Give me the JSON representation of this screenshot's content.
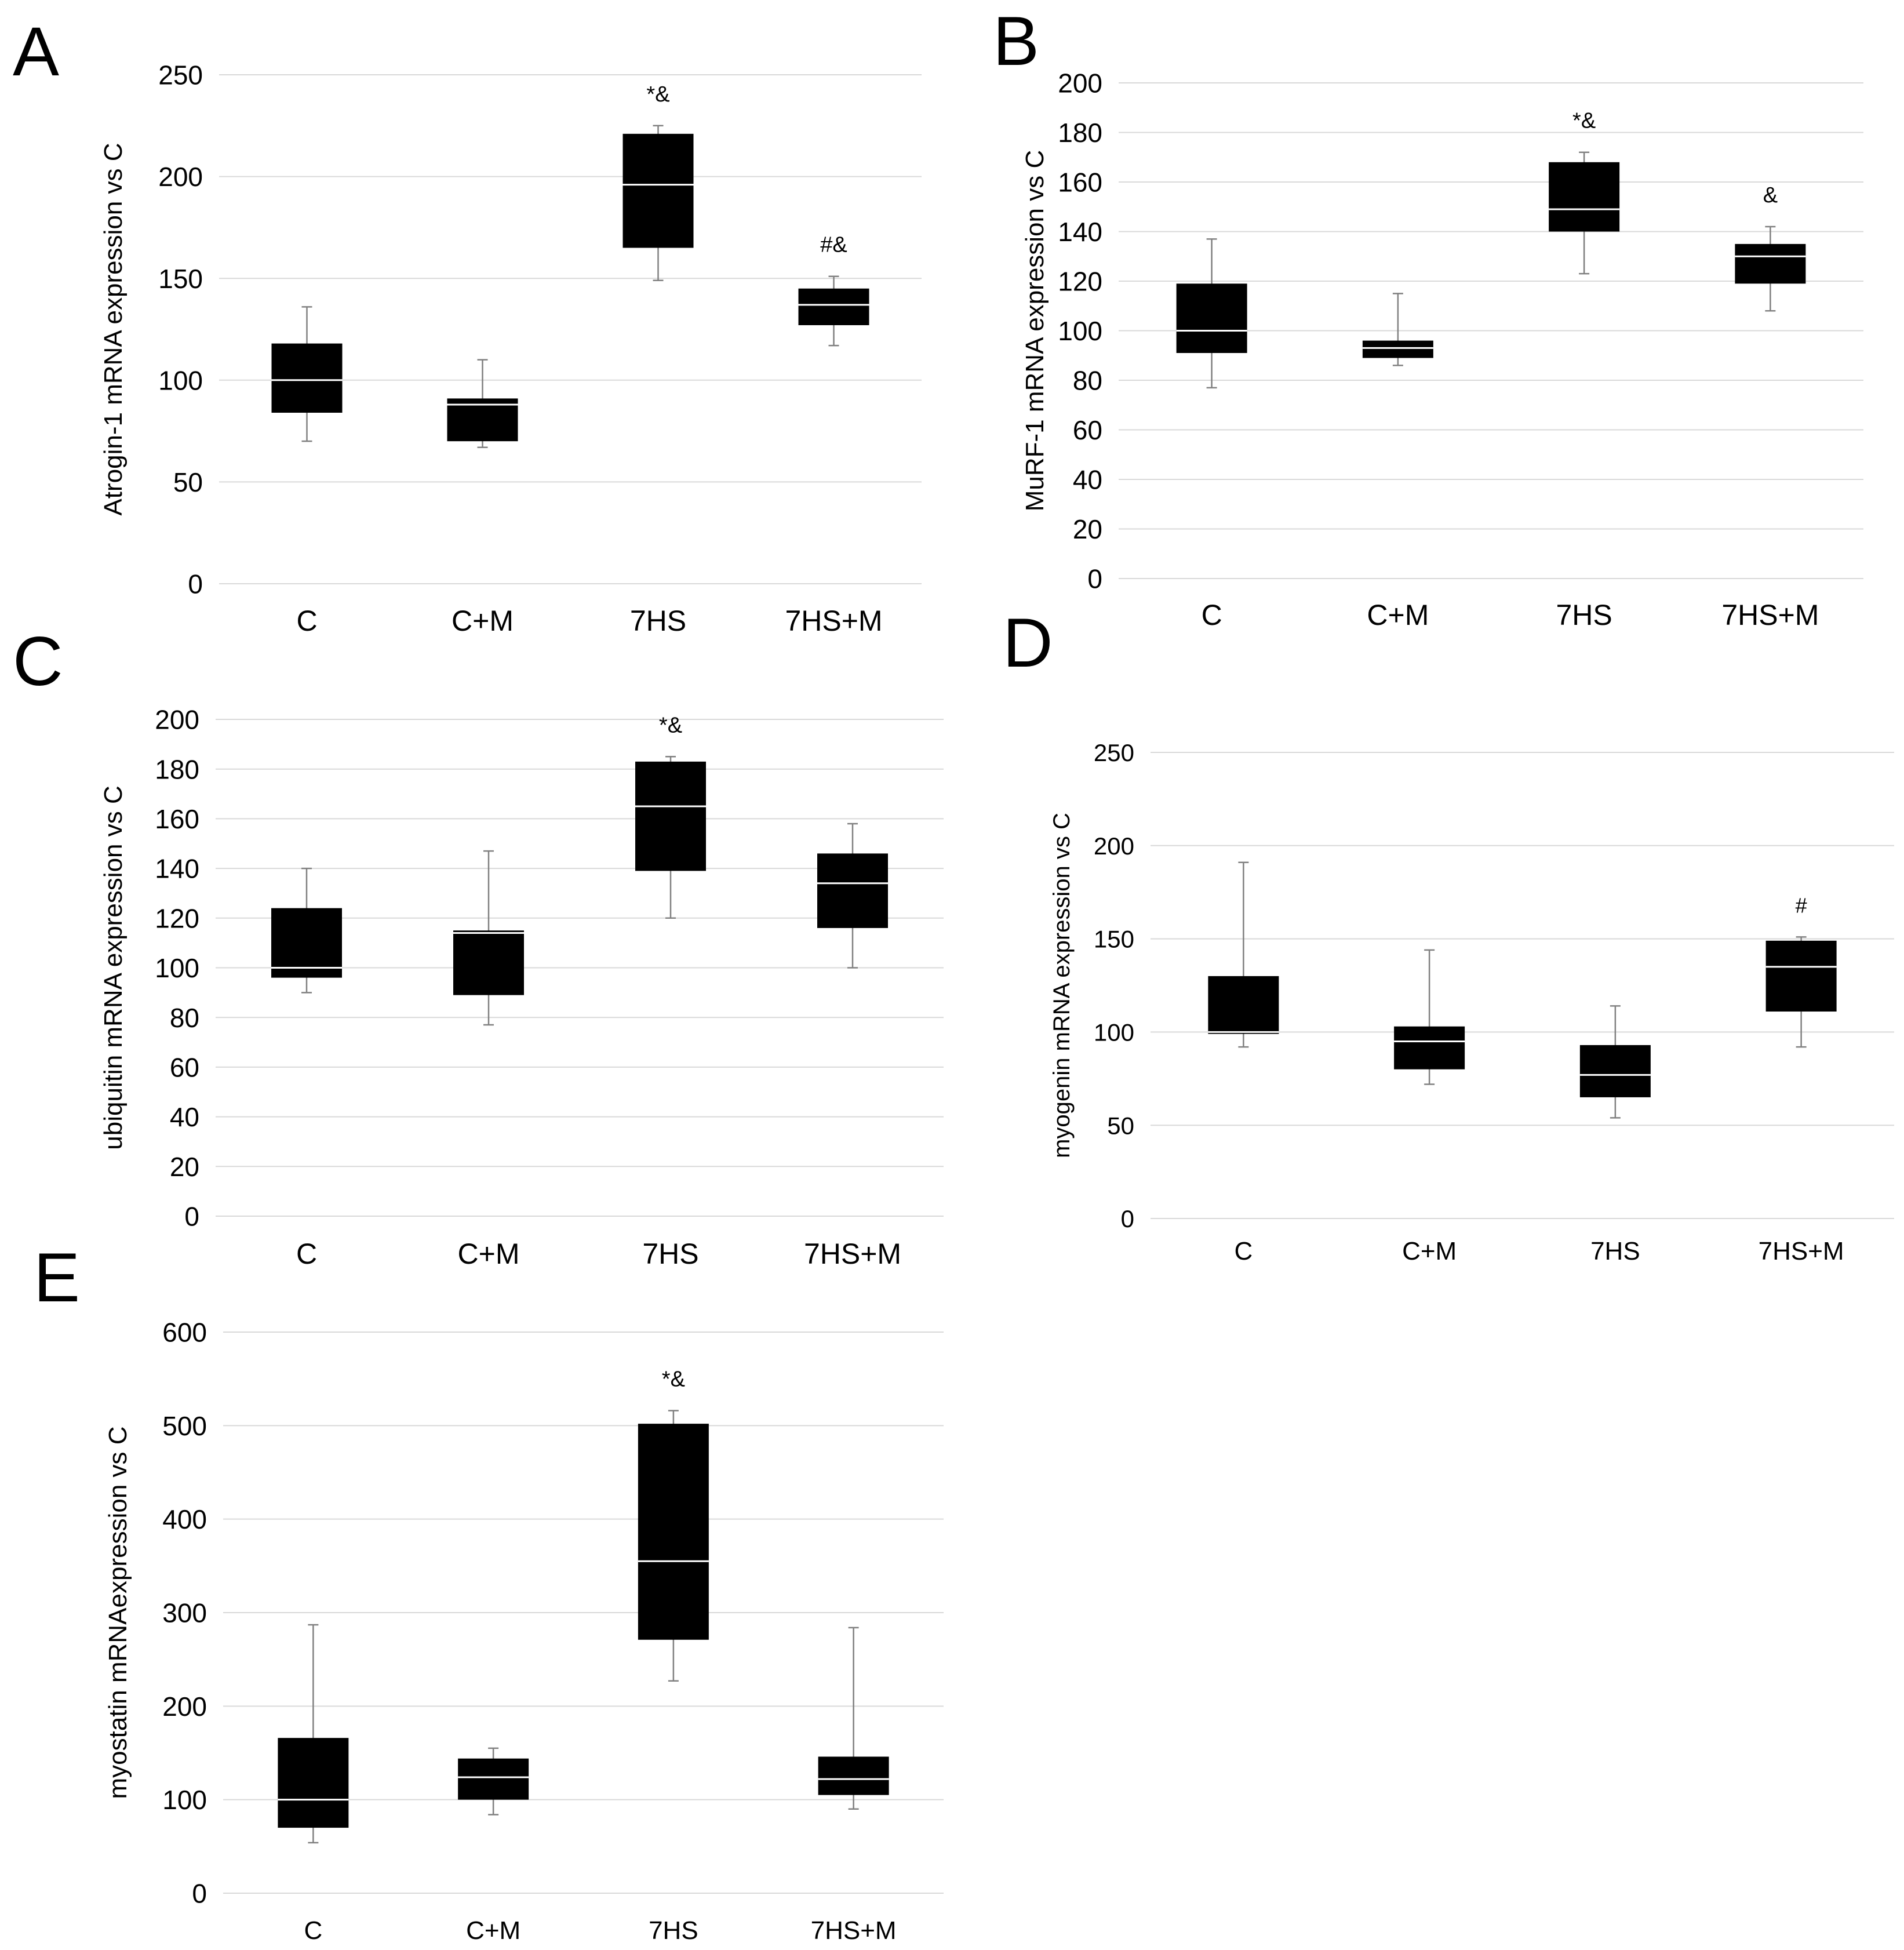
{
  "chart_data": [
    {
      "id": "A",
      "type": "box",
      "panel_label": "A",
      "ylabel": "Atrogin-1 mRNA expression vs C",
      "ylim": [
        0,
        250
      ],
      "yticks": [
        0,
        50,
        100,
        150,
        200,
        250
      ],
      "categories": [
        "C",
        "C+M",
        "7HS",
        "7HS+M"
      ],
      "boxes": [
        {
          "min": 70,
          "q1": 84,
          "median": 100,
          "q3": 118,
          "max": 136,
          "annotation": ""
        },
        {
          "min": 67,
          "q1": 70,
          "median": 88,
          "q3": 91,
          "max": 110,
          "annotation": ""
        },
        {
          "min": 149,
          "q1": 165,
          "median": 196,
          "q3": 221,
          "max": 225,
          "annotation": "*&"
        },
        {
          "min": 117,
          "q1": 127,
          "median": 137,
          "q3": 145,
          "max": 151,
          "annotation": "#&"
        }
      ]
    },
    {
      "id": "B",
      "type": "box",
      "panel_label": "B",
      "ylabel": "MuRF-1 mRNA expression vs C",
      "ylim": [
        0,
        200
      ],
      "yticks": [
        0,
        20,
        40,
        60,
        80,
        100,
        120,
        140,
        160,
        180,
        200
      ],
      "categories": [
        "C",
        "C+M",
        "7HS",
        "7HS+M"
      ],
      "boxes": [
        {
          "min": 77,
          "q1": 91,
          "median": 100,
          "q3": 119,
          "max": 137,
          "annotation": ""
        },
        {
          "min": 86,
          "q1": 89,
          "median": 93,
          "q3": 96,
          "max": 115,
          "annotation": ""
        },
        {
          "min": 123,
          "q1": 140,
          "median": 149,
          "q3": 168,
          "max": 172,
          "annotation": "*&"
        },
        {
          "min": 108,
          "q1": 119,
          "median": 130,
          "q3": 135,
          "max": 142,
          "annotation": "&"
        }
      ]
    },
    {
      "id": "C",
      "type": "box",
      "panel_label": "C",
      "ylabel": "ubiquitin mRNA expression vs C",
      "ylim": [
        0,
        200
      ],
      "yticks": [
        0,
        20,
        40,
        60,
        80,
        100,
        120,
        140,
        160,
        180,
        200
      ],
      "categories": [
        "C",
        "C+M",
        "7HS",
        "7HS+M"
      ],
      "boxes": [
        {
          "min": 90,
          "q1": 96,
          "median": 100,
          "q3": 124,
          "max": 140,
          "annotation": ""
        },
        {
          "min": 77,
          "q1": 89,
          "median": 114,
          "q3": 115,
          "max": 147,
          "annotation": ""
        },
        {
          "min": 120,
          "q1": 139,
          "median": 165,
          "q3": 183,
          "max": 185,
          "annotation": "*&"
        },
        {
          "min": 100,
          "q1": 116,
          "median": 134,
          "q3": 146,
          "max": 158,
          "annotation": ""
        }
      ]
    },
    {
      "id": "D",
      "type": "box",
      "panel_label": "D",
      "ylabel": "myogenin mRNA expression vs C",
      "ylim": [
        0,
        250
      ],
      "yticks": [
        0,
        50,
        100,
        150,
        200,
        250
      ],
      "categories": [
        "C",
        "C+M",
        "7HS",
        "7HS+M"
      ],
      "boxes": [
        {
          "min": 92,
          "q1": 99,
          "median": 100,
          "q3": 130,
          "max": 191,
          "annotation": ""
        },
        {
          "min": 72,
          "q1": 80,
          "median": 95,
          "q3": 103,
          "max": 144,
          "annotation": ""
        },
        {
          "min": 54,
          "q1": 65,
          "median": 77,
          "q3": 93,
          "max": 114,
          "annotation": ""
        },
        {
          "min": 92,
          "q1": 111,
          "median": 135,
          "q3": 149,
          "max": 151,
          "annotation": "#"
        }
      ]
    },
    {
      "id": "E",
      "type": "box",
      "panel_label": "E",
      "ylabel": "myostatin mRNAexpression vs C",
      "ylim": [
        0,
        600
      ],
      "yticks": [
        0,
        100,
        200,
        300,
        400,
        500,
        600
      ],
      "categories": [
        "C",
        "C+M",
        "7HS",
        "7HS+M"
      ],
      "boxes": [
        {
          "min": 54,
          "q1": 70,
          "median": 100,
          "q3": 166,
          "max": 287,
          "annotation": ""
        },
        {
          "min": 84,
          "q1": 100,
          "median": 124,
          "q3": 144,
          "max": 155,
          "annotation": ""
        },
        {
          "min": 227,
          "q1": 271,
          "median": 355,
          "q3": 502,
          "max": 516,
          "annotation": "*&"
        },
        {
          "min": 90,
          "q1": 105,
          "median": 122,
          "q3": 146,
          "max": 284,
          "annotation": ""
        }
      ]
    }
  ]
}
